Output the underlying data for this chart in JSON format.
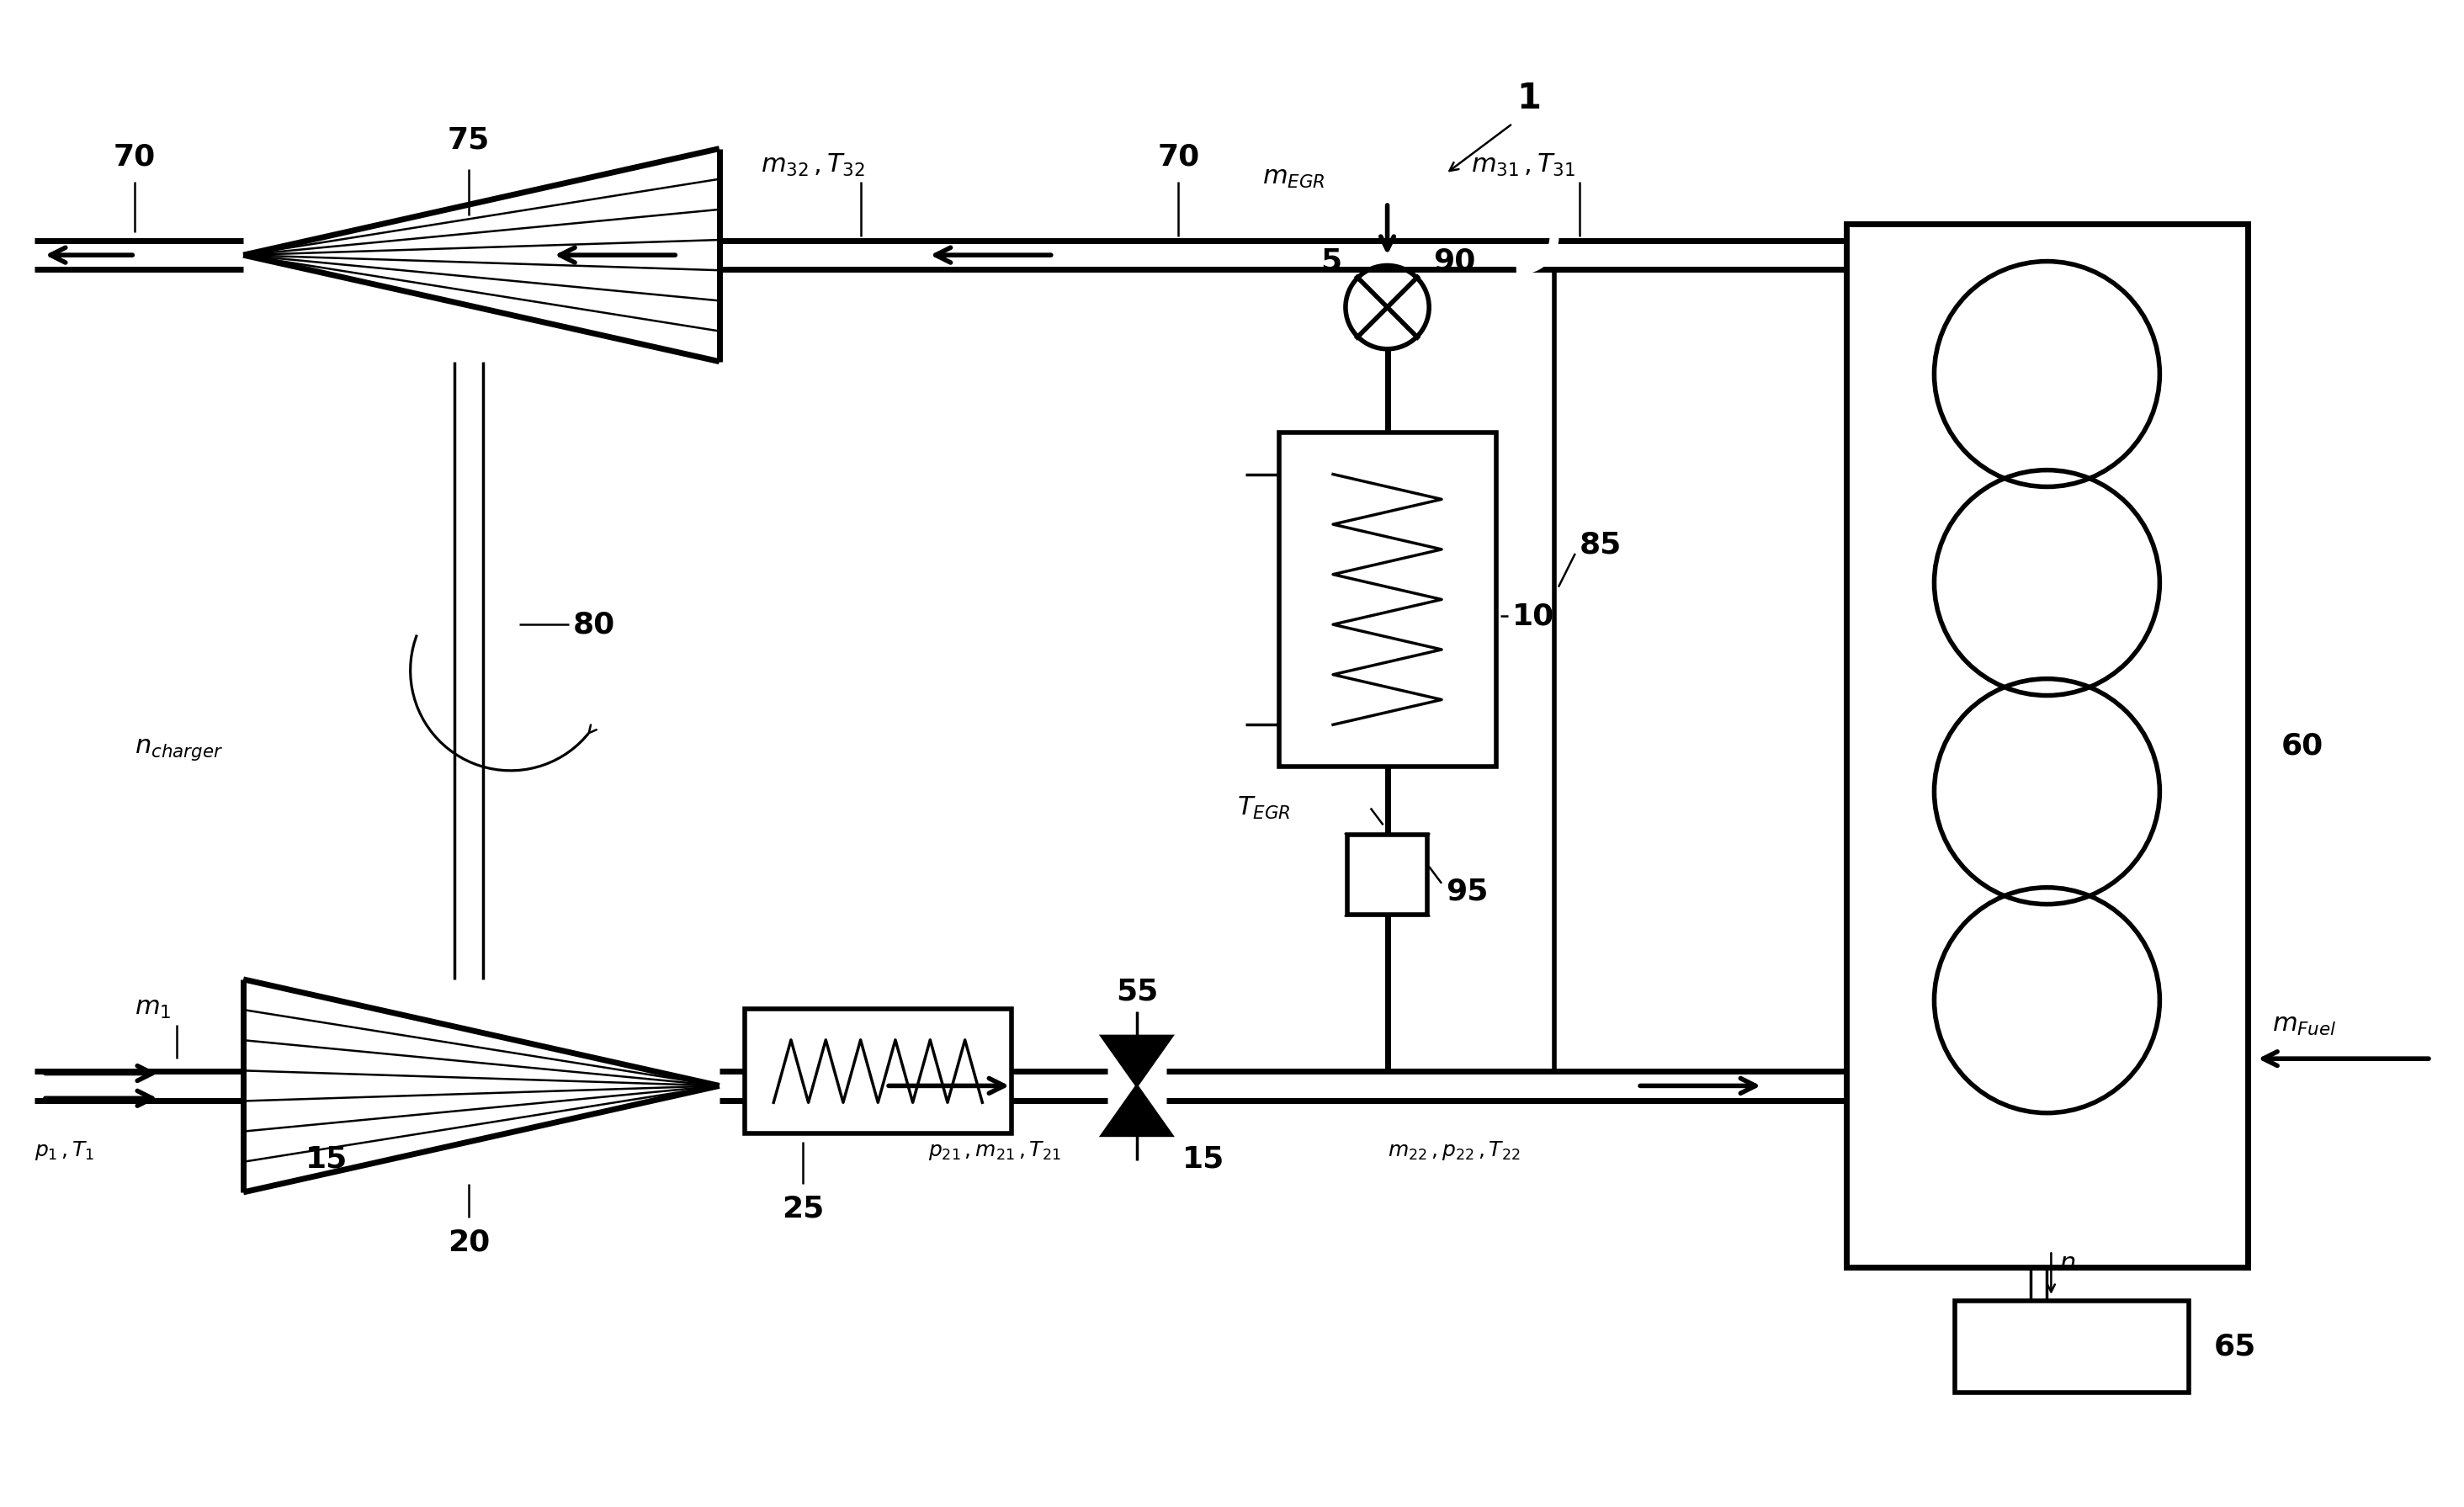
{
  "bg_color": "#ffffff",
  "line_color": "#000000",
  "lw_thick": 4.0,
  "lw_med": 2.5,
  "lw_thin": 1.8,
  "fig_width": 29.28,
  "fig_height": 17.91,
  "labels": {
    "system_num": "1",
    "label_70_left": "70",
    "label_75": "75",
    "label_80": "80",
    "n_charger": "n",
    "n_charger_sub": "charger",
    "label_20": "20",
    "m1": "m",
    "m1_sub": "1",
    "p1T1": "p",
    "p1_sub": "1",
    "T1": "T",
    "T1_sub": "1",
    "label_15a": "15",
    "label_15b": "15",
    "label_25": "25",
    "label_55": "55",
    "p21": "p",
    "p21_sub": "21",
    "m21": "m",
    "m21_sub": "21",
    "T21": "T",
    "T21_sub": "21",
    "m22": "m",
    "m22_sub": "22",
    "p22": "p",
    "p22_sub": "22",
    "T22": "T",
    "T22_sub": "22",
    "label_5": "5",
    "label_90": "90",
    "mEGR": "m",
    "mEGR_sub": "EGR",
    "label_10": "10",
    "label_85": "85",
    "TEGR": "T",
    "TEGR_sub": "EGR",
    "label_95": "95",
    "label_60": "60",
    "mFuel": "m",
    "mFuel_sub": "Fuel",
    "n_eng": "n",
    "label_65": "65",
    "m32": "m",
    "m32_sub": "32",
    "T32": "T",
    "T32_sub": "32",
    "label_70_mid": "70",
    "m31": "m",
    "m31_sub": "31",
    "T31": "T",
    "T31_sub": "31"
  }
}
